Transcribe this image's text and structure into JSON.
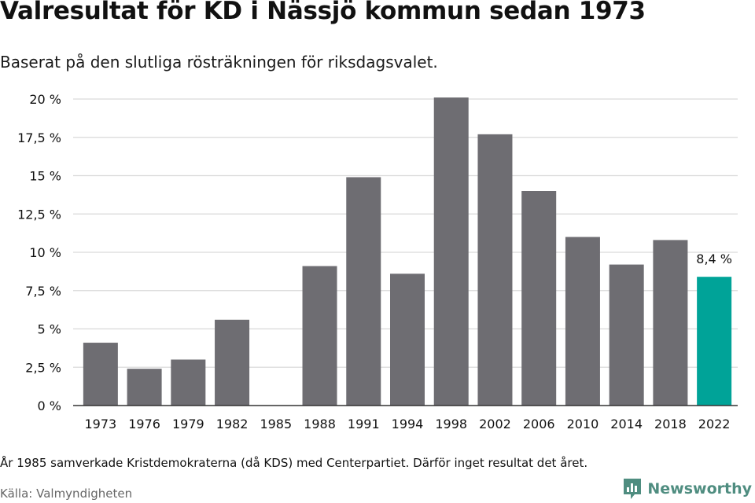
{
  "header": {
    "title": "Valresultat för KD i Nässjö kommun sedan 1973",
    "subtitle": "Baserat på den slutliga rösträkningen för riksdagsvalet."
  },
  "footer": {
    "note": "År 1985 samverkade Kristdemokraterna (då KDS) med Centerpartiet. Därför inget resultat det året.",
    "source": "Källa: Valmyndigheten",
    "brand": "Newsworthy",
    "brand_icon": "newsworthy-logo-icon"
  },
  "colors": {
    "bar": "#6e6d72",
    "highlight": "#00a398",
    "grid": "#d9d9d9",
    "axis": "#333333",
    "text": "#111111",
    "brand": "#4f8d80"
  },
  "chart_data": {
    "type": "bar",
    "categories": [
      "1973",
      "1976",
      "1979",
      "1982",
      "1985",
      "1988",
      "1991",
      "1994",
      "1998",
      "2002",
      "2006",
      "2010",
      "2014",
      "2018",
      "2022"
    ],
    "values": [
      4.1,
      2.4,
      3.0,
      5.6,
      null,
      9.1,
      14.9,
      8.6,
      20.1,
      17.7,
      14.0,
      11.0,
      9.2,
      10.8,
      8.4
    ],
    "highlight_index": 14,
    "data_labels": [
      {
        "index": 14,
        "text": "8,4 %"
      }
    ],
    "yticks": [
      "0 %",
      "2,5 %",
      "5 %",
      "7,5 %",
      "10 %",
      "12,5 %",
      "15 %",
      "17,5 %",
      "20 %"
    ],
    "ytick_values": [
      0,
      2.5,
      5,
      7.5,
      10,
      12.5,
      15,
      17.5,
      20
    ],
    "ylim": [
      0,
      20
    ],
    "grid": true,
    "xlabel": "",
    "ylabel": ""
  }
}
